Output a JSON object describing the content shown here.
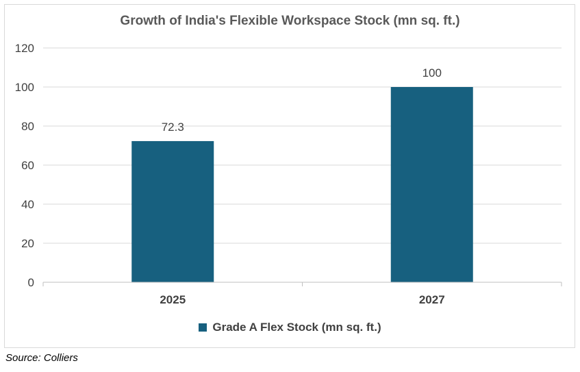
{
  "chart_data": {
    "type": "bar",
    "title": "Growth of India's Flexible Workspace Stock (mn sq. ft.)",
    "categories": [
      "2025",
      "2027"
    ],
    "series": [
      {
        "name": "Grade A Flex Stock (mn sq. ft.)",
        "values": [
          72.3,
          100
        ],
        "color": "#17607f"
      }
    ],
    "data_labels": [
      "72.3",
      "100"
    ],
    "ylim": [
      0,
      120
    ],
    "yticks": [
      0,
      20,
      40,
      60,
      80,
      100,
      120
    ],
    "grid": true,
    "legend_position": "bottom"
  },
  "source_note": "Source: Colliers",
  "colors": {
    "gridline": "#d9d9d9",
    "axis_text": "#404040"
  }
}
